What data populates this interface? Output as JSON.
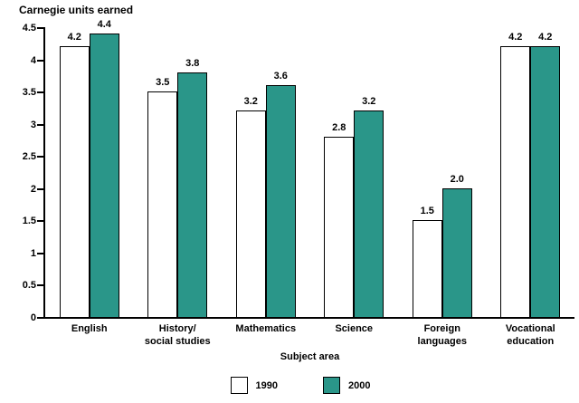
{
  "chart_data": {
    "type": "bar",
    "title": "Carnegie units earned",
    "xlabel": "Subject area",
    "ylabel": "",
    "categories": [
      "English",
      "History/\nsocial studies",
      "Mathematics",
      "Science",
      "Foreign\nlanguages",
      "Vocational\neducation"
    ],
    "series": [
      {
        "name": "1990",
        "color": "#ffffff",
        "values": [
          4.2,
          3.5,
          3.2,
          2.8,
          1.5,
          4.2
        ]
      },
      {
        "name": "2000",
        "color": "#2a9689",
        "values": [
          4.4,
          3.8,
          3.6,
          3.2,
          2.0,
          4.2
        ]
      }
    ],
    "ylim": [
      0,
      4.5
    ],
    "ytick_labels": [
      "0",
      "0.5",
      "1",
      "1.5",
      "2",
      "2.5",
      "3",
      "3.5",
      "4",
      "4.5"
    ],
    "grid": false,
    "legend_position": "bottom",
    "bar_value_labels": true,
    "colors": {
      "bar_border": "#000000",
      "axis": "#000000",
      "text": "#000000"
    }
  },
  "legend": {
    "items": [
      {
        "label": "1990",
        "color": "#ffffff"
      },
      {
        "label": "2000",
        "color": "#2a9689"
      }
    ]
  }
}
